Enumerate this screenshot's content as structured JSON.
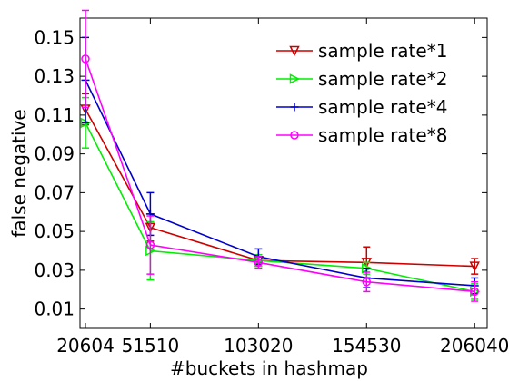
{
  "chart_data": {
    "type": "line",
    "xlabel": "#buckets in hashmap",
    "ylabel": "false negative",
    "x_categories": [
      "20604",
      "51510",
      "103020",
      "154530",
      "206040"
    ],
    "x": [
      20604,
      51510,
      103020,
      154530,
      206040
    ],
    "xlim": [
      18000,
      212000
    ],
    "ylim": [
      0,
      0.16
    ],
    "yticks": [
      0.01,
      0.03,
      0.05,
      0.07,
      0.09,
      0.11,
      0.13,
      0.15
    ],
    "ytick_labels": [
      "0.01",
      "0.03",
      "0.05",
      "0.07",
      "0.09",
      "0.11",
      "0.13",
      "0.15"
    ],
    "legend_position": "top-right",
    "grid": false,
    "series": [
      {
        "name": "sample rate*1",
        "color": "#cc0000",
        "marker": "triangle-down",
        "values": [
          0.113,
          0.052,
          0.035,
          0.034,
          0.032
        ],
        "error": [
          0.008,
          0.007,
          0.003,
          0.008,
          0.004
        ]
      },
      {
        "name": "sample rate*2",
        "color": "#00ee00",
        "marker": "triangle-right",
        "values": [
          0.106,
          0.04,
          0.035,
          0.031,
          0.019
        ],
        "error": [
          0.013,
          0.015,
          0.003,
          0.003,
          0.004
        ]
      },
      {
        "name": "sample rate*4",
        "color": "#0000cc",
        "marker": "plus",
        "values": [
          0.128,
          0.059,
          0.037,
          0.026,
          0.022
        ],
        "error": [
          0.022,
          0.011,
          0.004,
          0.005,
          0.004
        ]
      },
      {
        "name": "sample rate*8",
        "color": "#ff00ff",
        "marker": "circle",
        "values": [
          0.139,
          0.043,
          0.034,
          0.024,
          0.019
        ],
        "error": [
          0.025,
          0.015,
          0.003,
          0.005,
          0.005
        ]
      }
    ]
  }
}
